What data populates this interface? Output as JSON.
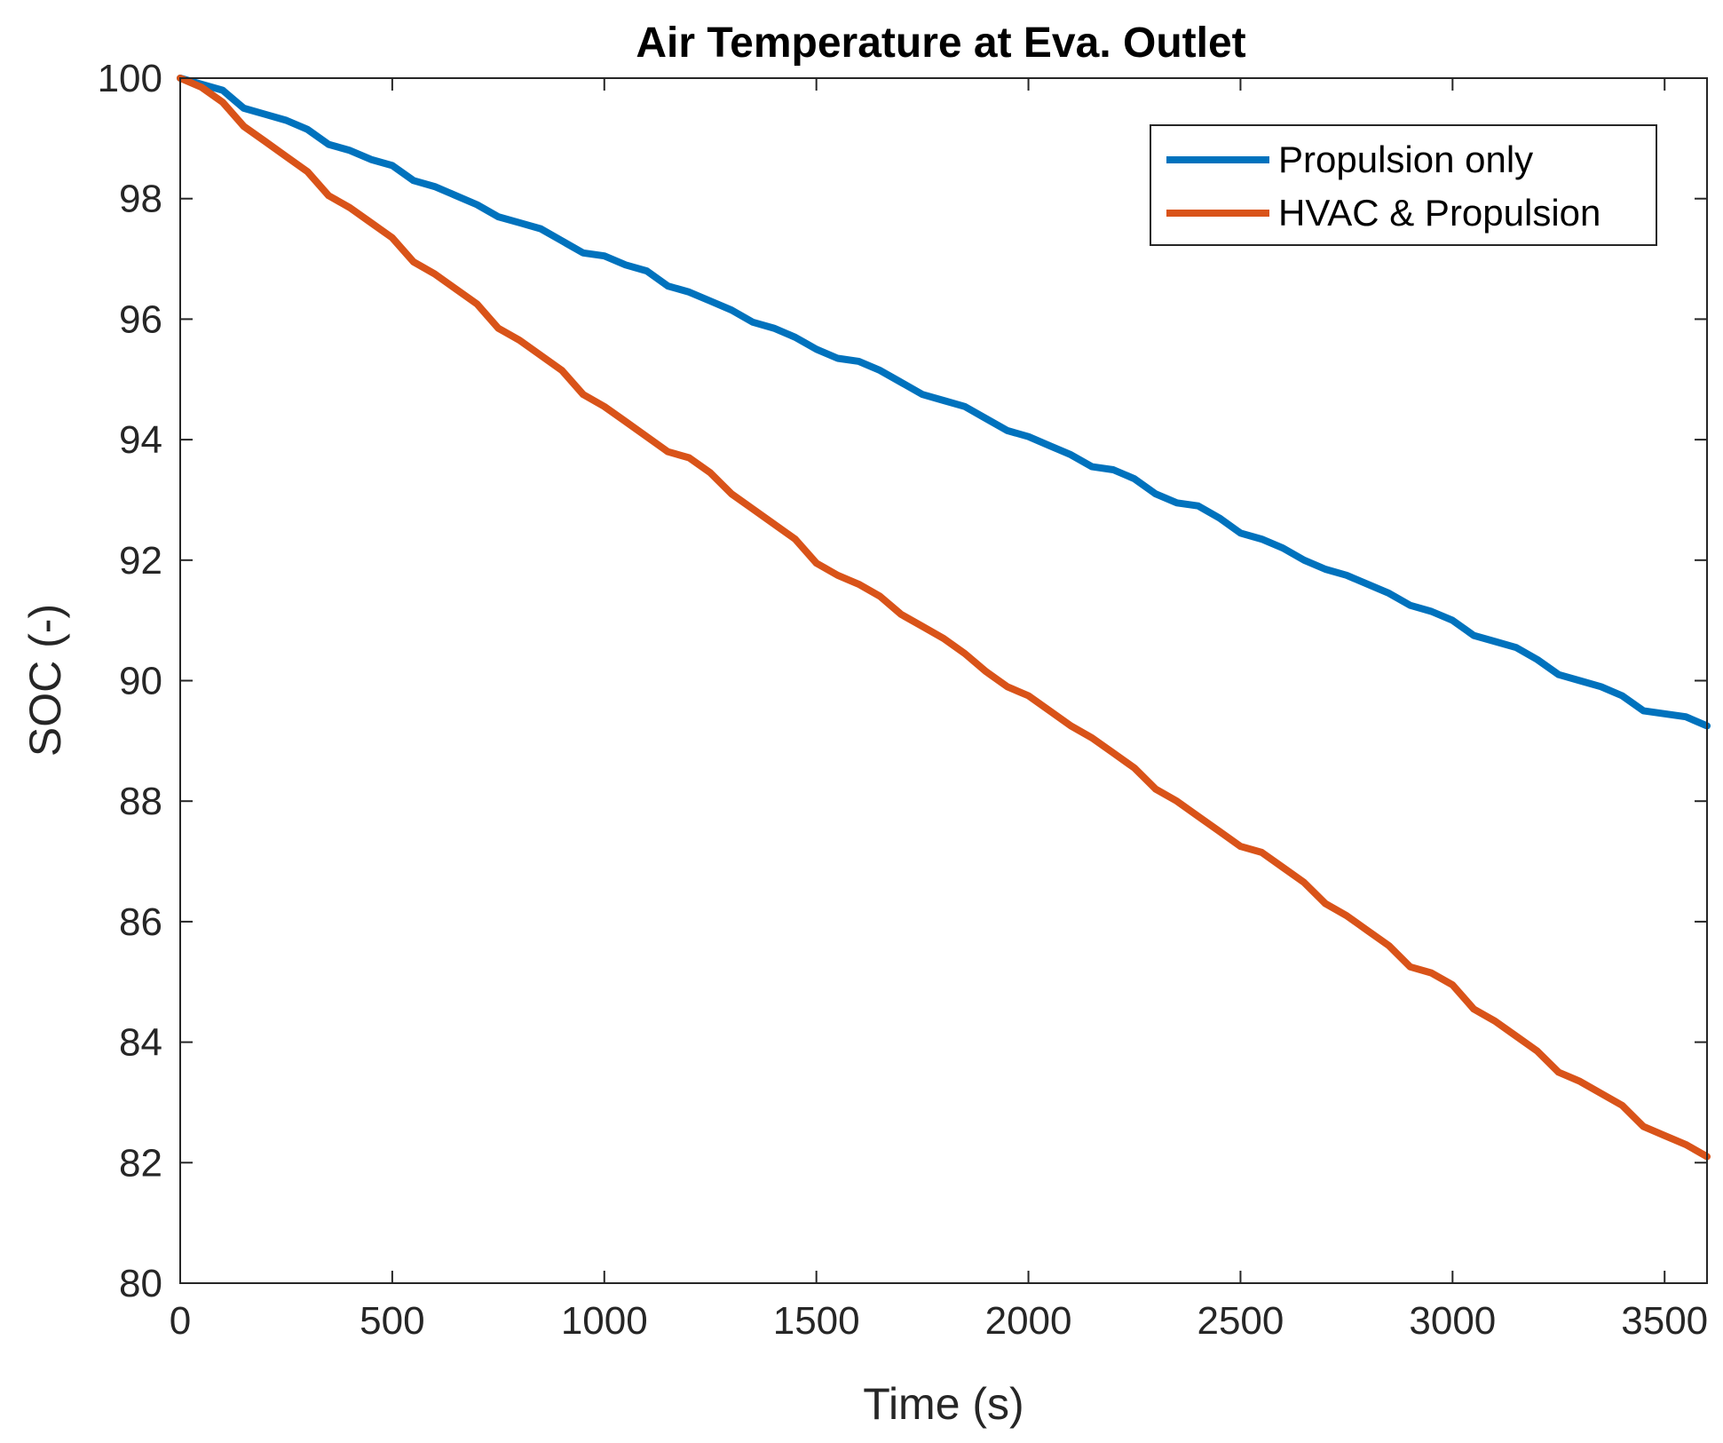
{
  "chart_data": {
    "type": "line",
    "title": "Air Temperature at Eva. Outlet",
    "xlabel": "Time (s)",
    "ylabel": "SOC (-)",
    "xlim": [
      0,
      3600
    ],
    "ylim": [
      80,
      100
    ],
    "xticks": [
      0,
      500,
      1000,
      1500,
      2000,
      2500,
      3000,
      3500
    ],
    "yticks": [
      80,
      82,
      84,
      86,
      88,
      90,
      92,
      94,
      96,
      98,
      100
    ],
    "grid": false,
    "legend_position": "top-right",
    "series": [
      {
        "name": "Propulsion only",
        "color": "#0072BD",
        "x": [
          0,
          50,
          100,
          150,
          200,
          250,
          300,
          350,
          400,
          450,
          500,
          550,
          600,
          650,
          700,
          750,
          800,
          850,
          900,
          950,
          1000,
          1050,
          1100,
          1150,
          1200,
          1250,
          1300,
          1350,
          1400,
          1450,
          1500,
          1550,
          1600,
          1650,
          1700,
          1750,
          1800,
          1850,
          1900,
          1950,
          2000,
          2050,
          2100,
          2150,
          2200,
          2250,
          2300,
          2350,
          2400,
          2450,
          2500,
          2550,
          2600,
          2650,
          2700,
          2750,
          2800,
          2850,
          2900,
          2950,
          3000,
          3050,
          3100,
          3150,
          3200,
          3250,
          3300,
          3350,
          3400,
          3450,
          3500,
          3550,
          3600
        ],
        "y": [
          100.0,
          99.9,
          99.8,
          99.5,
          99.4,
          99.3,
          99.15,
          98.9,
          98.8,
          98.65,
          98.55,
          98.3,
          98.2,
          98.05,
          97.9,
          97.7,
          97.6,
          97.5,
          97.3,
          97.1,
          97.05,
          96.9,
          96.8,
          96.55,
          96.45,
          96.3,
          96.15,
          95.95,
          95.85,
          95.7,
          95.5,
          95.35,
          95.3,
          95.15,
          94.95,
          94.75,
          94.65,
          94.55,
          94.35,
          94.15,
          94.05,
          93.9,
          93.75,
          93.55,
          93.5,
          93.35,
          93.1,
          92.95,
          92.9,
          92.7,
          92.45,
          92.35,
          92.2,
          92.0,
          91.85,
          91.75,
          91.6,
          91.45,
          91.25,
          91.15,
          91.0,
          90.75,
          90.65,
          90.55,
          90.35,
          90.1,
          90.0,
          89.9,
          89.75,
          89.5,
          89.45,
          89.4,
          89.25
        ]
      },
      {
        "name": "HVAC & Propulsion",
        "color": "#D95319",
        "x": [
          0,
          50,
          100,
          150,
          200,
          250,
          300,
          350,
          400,
          450,
          500,
          550,
          600,
          650,
          700,
          750,
          800,
          850,
          900,
          950,
          1000,
          1050,
          1100,
          1150,
          1200,
          1250,
          1300,
          1350,
          1400,
          1450,
          1500,
          1550,
          1600,
          1650,
          1700,
          1750,
          1800,
          1850,
          1900,
          1950,
          2000,
          2050,
          2100,
          2150,
          2200,
          2250,
          2300,
          2350,
          2400,
          2450,
          2500,
          2550,
          2600,
          2650,
          2700,
          2750,
          2800,
          2850,
          2900,
          2950,
          3000,
          3050,
          3100,
          3150,
          3200,
          3250,
          3300,
          3350,
          3400,
          3450,
          3500,
          3550,
          3600
        ],
        "y": [
          100.0,
          99.85,
          99.6,
          99.2,
          98.95,
          98.7,
          98.45,
          98.05,
          97.85,
          97.6,
          97.35,
          96.95,
          96.75,
          96.5,
          96.25,
          95.85,
          95.65,
          95.4,
          95.15,
          94.75,
          94.55,
          94.3,
          94.05,
          93.8,
          93.7,
          93.45,
          93.1,
          92.85,
          92.6,
          92.35,
          91.95,
          91.75,
          91.6,
          91.4,
          91.1,
          90.9,
          90.7,
          90.45,
          90.15,
          89.9,
          89.75,
          89.5,
          89.25,
          89.05,
          88.8,
          88.55,
          88.2,
          88.0,
          87.75,
          87.5,
          87.25,
          87.15,
          86.9,
          86.65,
          86.3,
          86.1,
          85.85,
          85.6,
          85.25,
          85.15,
          84.95,
          84.55,
          84.35,
          84.1,
          83.85,
          83.5,
          83.35,
          83.15,
          82.95,
          82.6,
          82.45,
          82.3,
          82.1
        ]
      }
    ]
  }
}
